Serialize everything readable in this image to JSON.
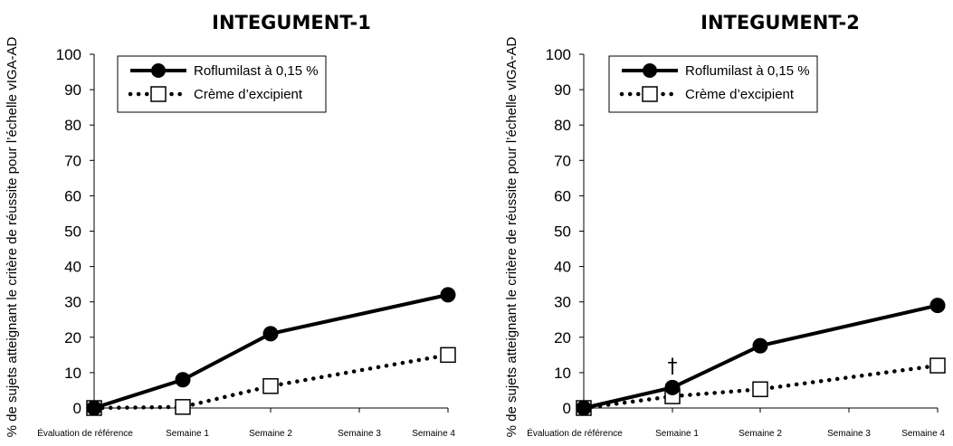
{
  "chart_data": [
    {
      "type": "line",
      "title": "INTEGUMENT-1",
      "ylabel": "% de sujets atteignant le critère de réussite pour l’échelle vIGA-AD",
      "xlabel": "",
      "categories": [
        "Évaluation de référence",
        "Semaine 1",
        "Semaine 2",
        "Semaine 3",
        "Semaine 4"
      ],
      "yticks": [
        "0",
        "10",
        "20",
        "30",
        "40",
        "50",
        "60",
        "70",
        "80",
        "90",
        "100"
      ],
      "ylim": [
        0,
        100
      ],
      "grid": false,
      "legend_position": "top",
      "series": [
        {
          "name": "Roflumilast à 0,15 %",
          "x": [
            "Évaluation de référence",
            "Semaine 1",
            "Semaine 2",
            "Semaine 4"
          ],
          "values": [
            0,
            8,
            21,
            32
          ],
          "style": "solid",
          "marker": "filled-circle",
          "color": "#000000"
        },
        {
          "name": "Crème d’excipient",
          "x": [
            "Évaluation de référence",
            "Semaine 1",
            "Semaine 2",
            "Semaine 4"
          ],
          "values": [
            0,
            0.3,
            6.2,
            15
          ],
          "style": "dotted",
          "marker": "open-square",
          "color": "#000000"
        }
      ],
      "annotations": []
    },
    {
      "type": "line",
      "title": "INTEGUMENT-2",
      "ylabel": "% de sujets atteignant le critère de réussite pour l’échelle vIGA-AD",
      "xlabel": "",
      "categories": [
        "Évaluation de référence",
        "Semaine 1",
        "Semaine 2",
        "Semaine 3",
        "Semaine 4"
      ],
      "yticks": [
        "0",
        "10",
        "20",
        "30",
        "40",
        "50",
        "60",
        "70",
        "80",
        "90",
        "100"
      ],
      "ylim": [
        0,
        100
      ],
      "grid": false,
      "legend_position": "top",
      "series": [
        {
          "name": "Roflumilast à 0,15 %",
          "x": [
            "Évaluation de référence",
            "Semaine 1",
            "Semaine 2",
            "Semaine 4"
          ],
          "values": [
            0,
            5.8,
            17.6,
            29
          ],
          "style": "solid",
          "marker": "filled-circle",
          "color": "#000000"
        },
        {
          "name": "Crème d’excipient",
          "x": [
            "Évaluation de référence",
            "Semaine 1",
            "Semaine 2",
            "Semaine 4"
          ],
          "values": [
            0,
            3.3,
            5.3,
            12
          ],
          "style": "dotted",
          "marker": "open-square",
          "color": "#000000"
        }
      ],
      "annotations": [
        {
          "text": "†",
          "x": "Semaine 1",
          "y": 12
        }
      ]
    }
  ]
}
